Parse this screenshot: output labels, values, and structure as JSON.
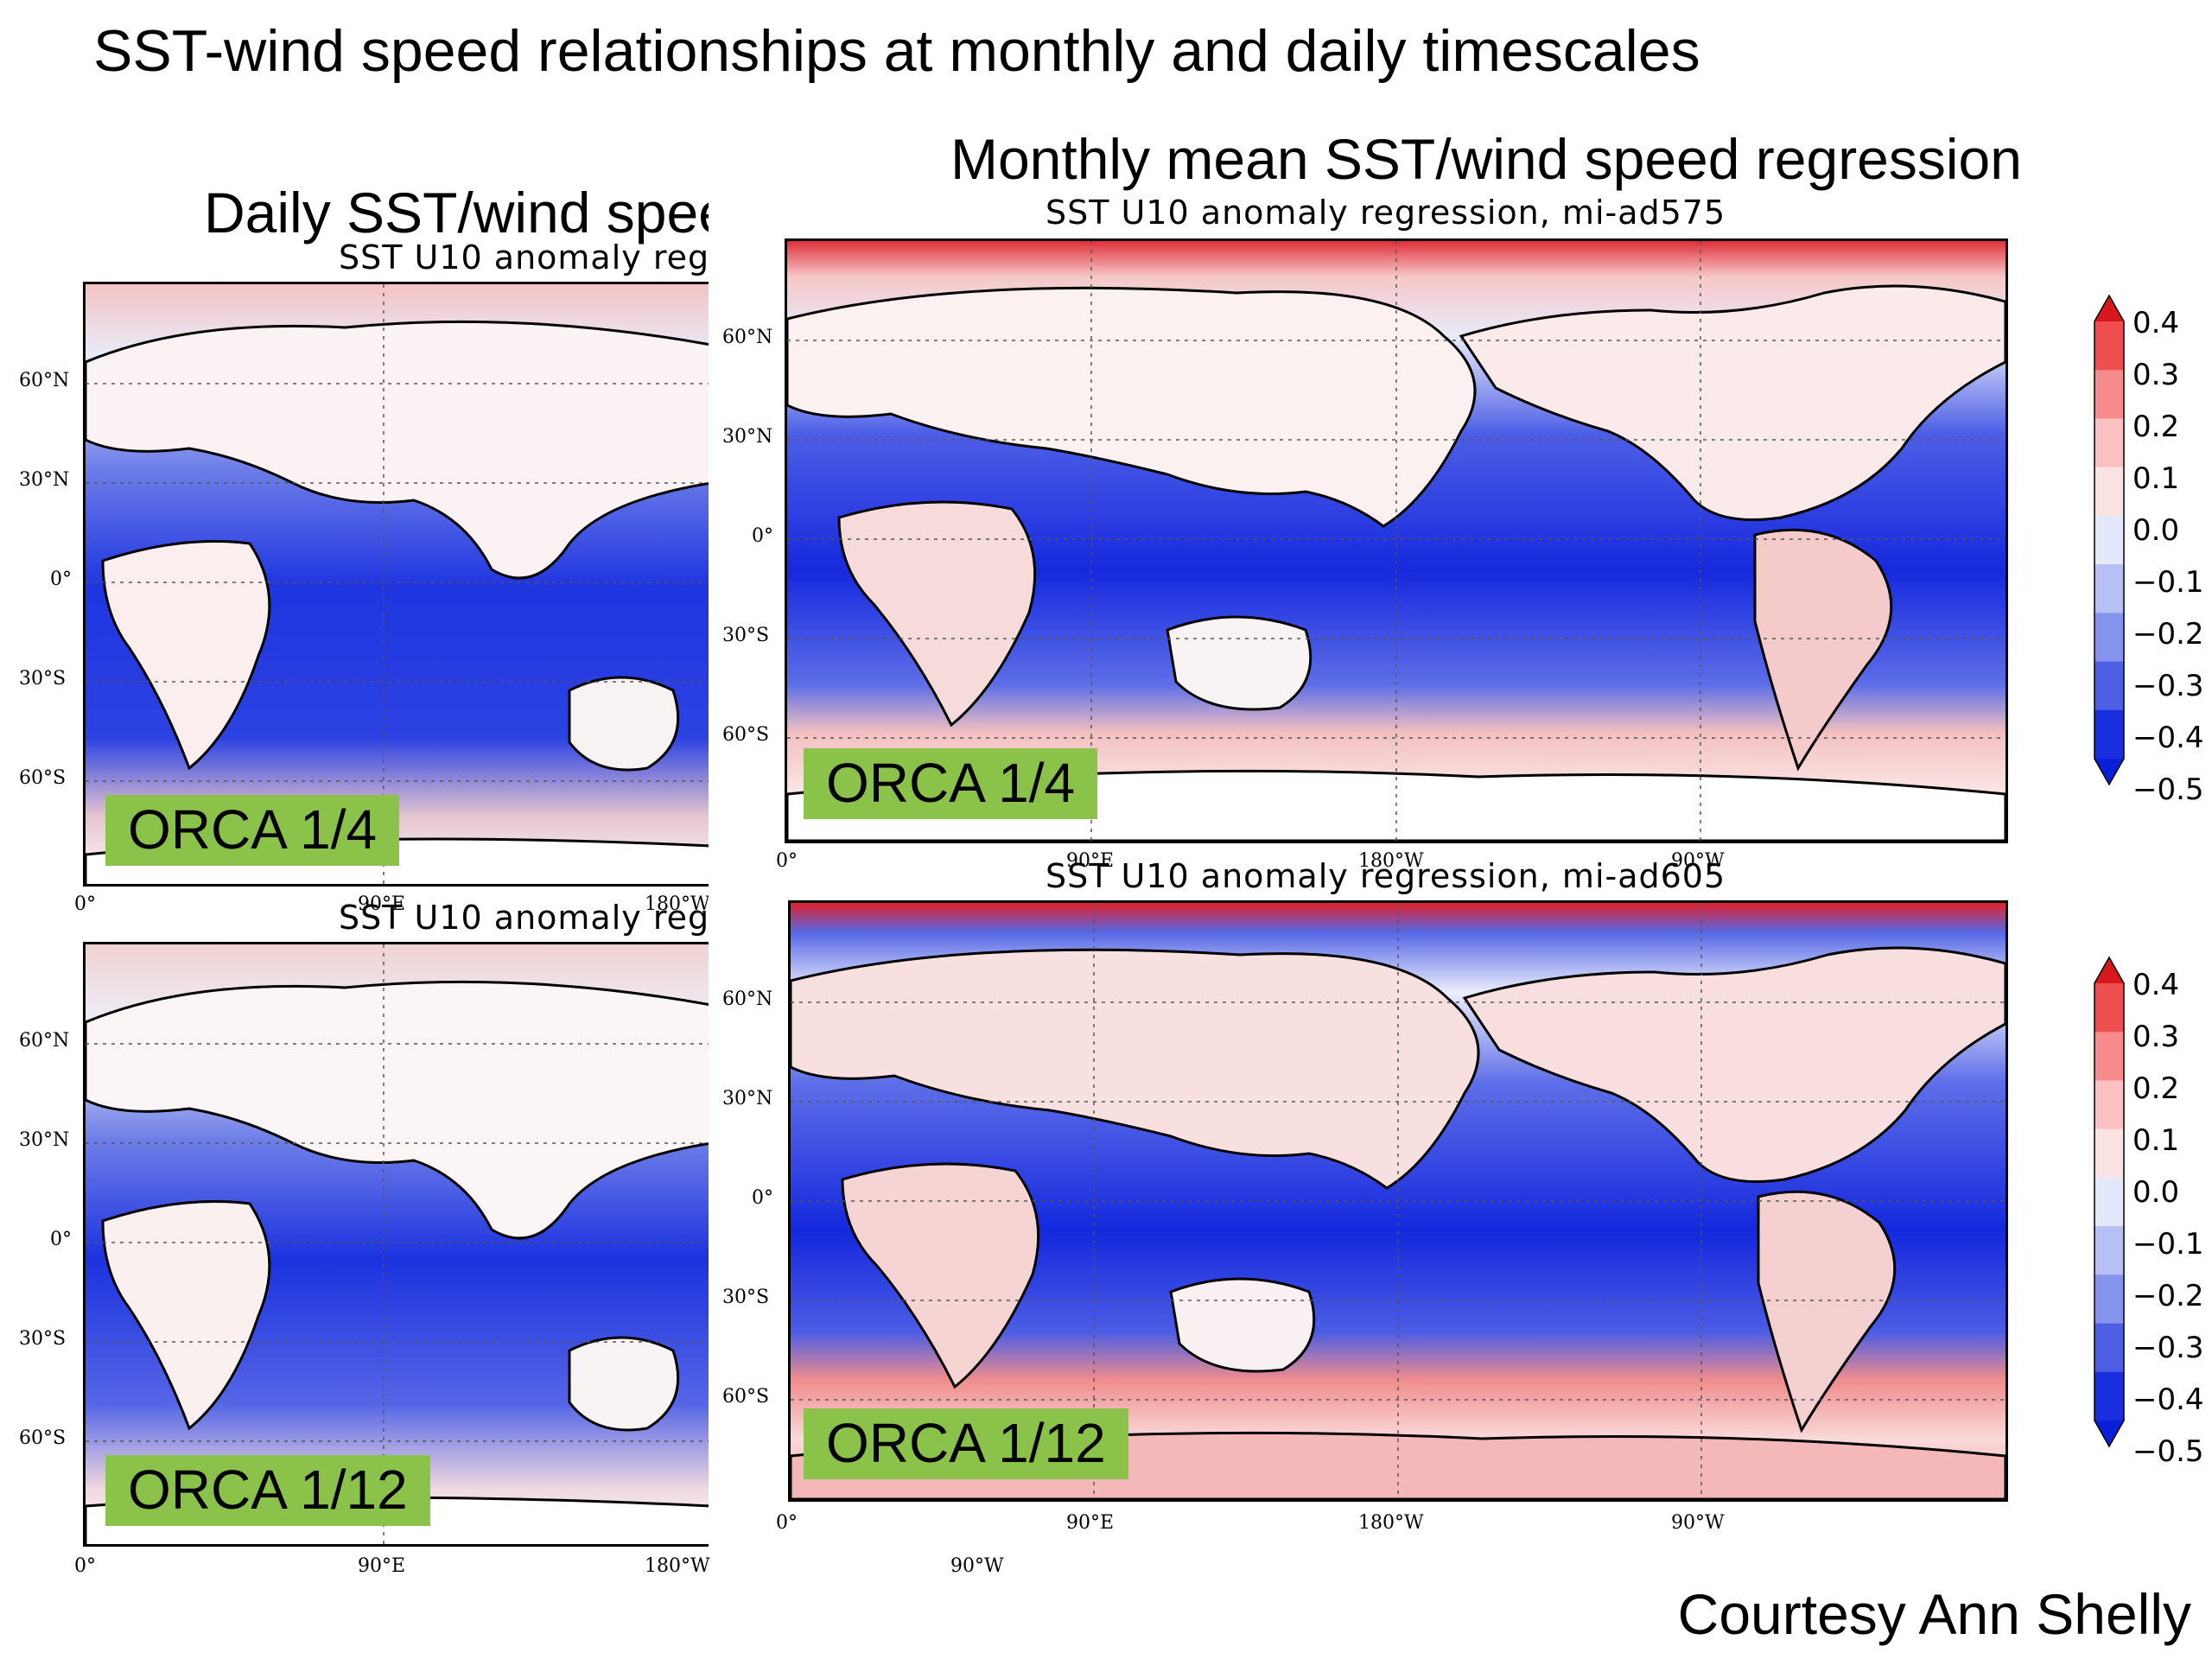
{
  "title": "SST-wind speed relationships at monthly and daily timescales",
  "daily": {
    "heading": "Daily SST/wind spee",
    "panels": [
      {
        "subtitle": "SST U10 anomaly reg",
        "badge": "ORCA 1/4",
        "lon_ticks": [
          "0°",
          "90°E",
          "180°W"
        ]
      },
      {
        "subtitle": "SST U10 anomaly reg",
        "badge": "ORCA 1/12",
        "lon_ticks": [
          "0°",
          "90°E",
          "180°W"
        ]
      }
    ],
    "lat_ticks": [
      "60°N",
      "30°N",
      "0°",
      "30°S",
      "60°S"
    ]
  },
  "monthly": {
    "heading": "Monthly mean SST/wind speed regression",
    "panels": [
      {
        "subtitle": "SST U10 anomaly regression, mi-ad575",
        "badge": "ORCA 1/4",
        "lon_ticks": [
          "0°",
          "90°E",
          "180°W",
          "90°W"
        ]
      },
      {
        "subtitle": "SST U10 anomaly regression, mi-ad605",
        "badge": "ORCA 1/12",
        "lon_ticks": [
          "0°",
          "90°E",
          "180°W",
          "90°W"
        ]
      }
    ],
    "lat_ticks": [
      "60°N",
      "30°N",
      "0°",
      "30°S",
      "60°S"
    ],
    "extra_label": "90°W"
  },
  "colorbar": {
    "ticks": [
      "0.4",
      "0.3",
      "0.2",
      "0.1",
      "0.0",
      "−0.1",
      "−0.2",
      "−0.3",
      "−0.4",
      "−0.5"
    ],
    "colors": [
      "#d7191c",
      "#ee4e4e",
      "#f58b8b",
      "#f9c1c1",
      "#fbe3e3",
      "#e4e8fb",
      "#b7c0f5",
      "#8593ee",
      "#4e5fe6",
      "#1a2ee0",
      "#0a1fd8"
    ]
  },
  "credit": "Courtesy Ann Shelly"
}
